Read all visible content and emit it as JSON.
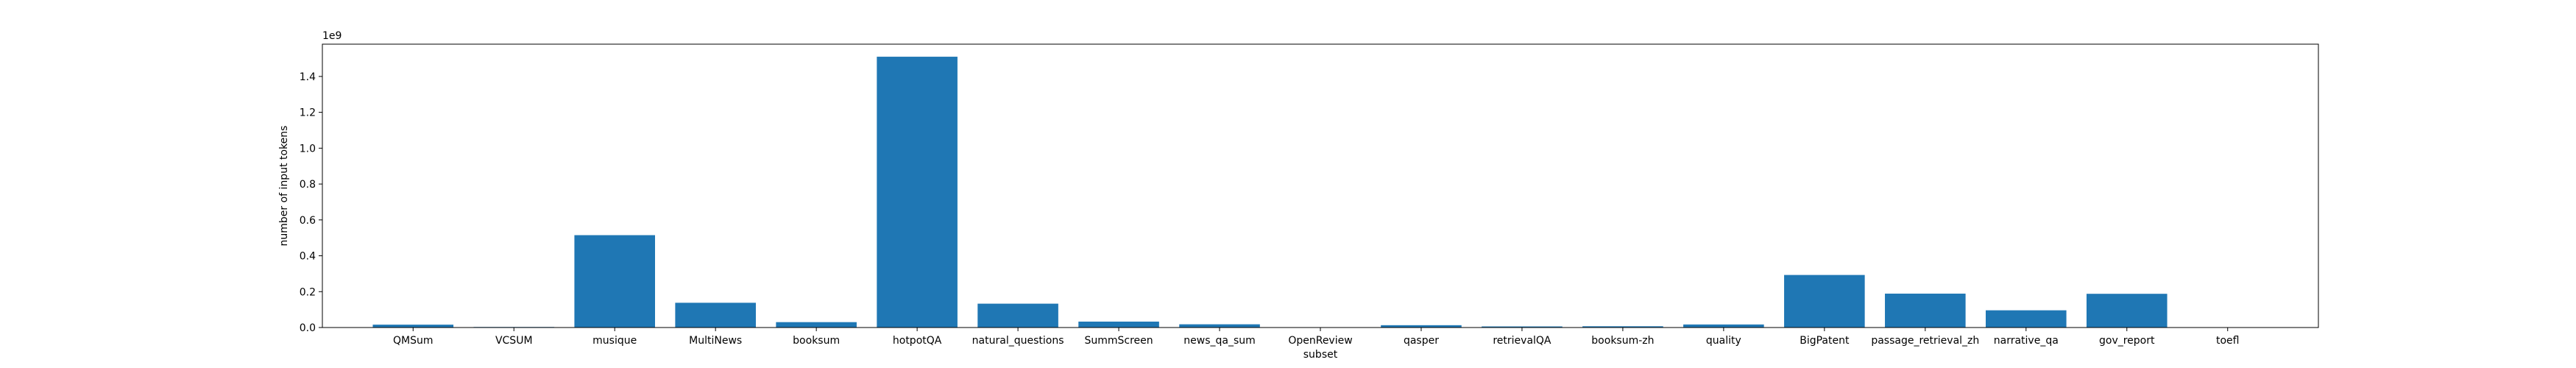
{
  "chart_data": {
    "type": "bar",
    "title": "",
    "xlabel": "subset",
    "ylabel": "number of input tokens",
    "y_offset_label": "1e9",
    "ylim": [
      0,
      1.58
    ],
    "y_ticks": [
      0.0,
      0.2,
      0.4,
      0.6,
      0.8,
      1.0,
      1.2,
      1.4
    ],
    "y_tick_labels": [
      "0.0",
      "0.2",
      "0.4",
      "0.6",
      "0.8",
      "1.0",
      "1.2",
      "1.4"
    ],
    "y_unit_multiplier": "1e9",
    "grid": false,
    "legend": "none",
    "bar_color": "#1f77b4",
    "categories": [
      "QMSum",
      "VCSUM",
      "musique",
      "MultiNews",
      "booksum",
      "hotpotQA",
      "natural_questions",
      "SummScreen",
      "news_qa_sum",
      "OpenReview",
      "qasper",
      "retrievalQA",
      "booksum-zh",
      "quality",
      "BigPatent",
      "passage_retrieval_zh",
      "narrative_qa",
      "gov_report",
      "toefl"
    ],
    "values": [
      0.016,
      0.003,
      0.515,
      0.138,
      0.03,
      1.51,
      0.133,
      0.033,
      0.018,
      0.002,
      0.013,
      0.006,
      0.007,
      0.017,
      0.293,
      0.189,
      0.096,
      0.188,
      0.002
    ]
  }
}
